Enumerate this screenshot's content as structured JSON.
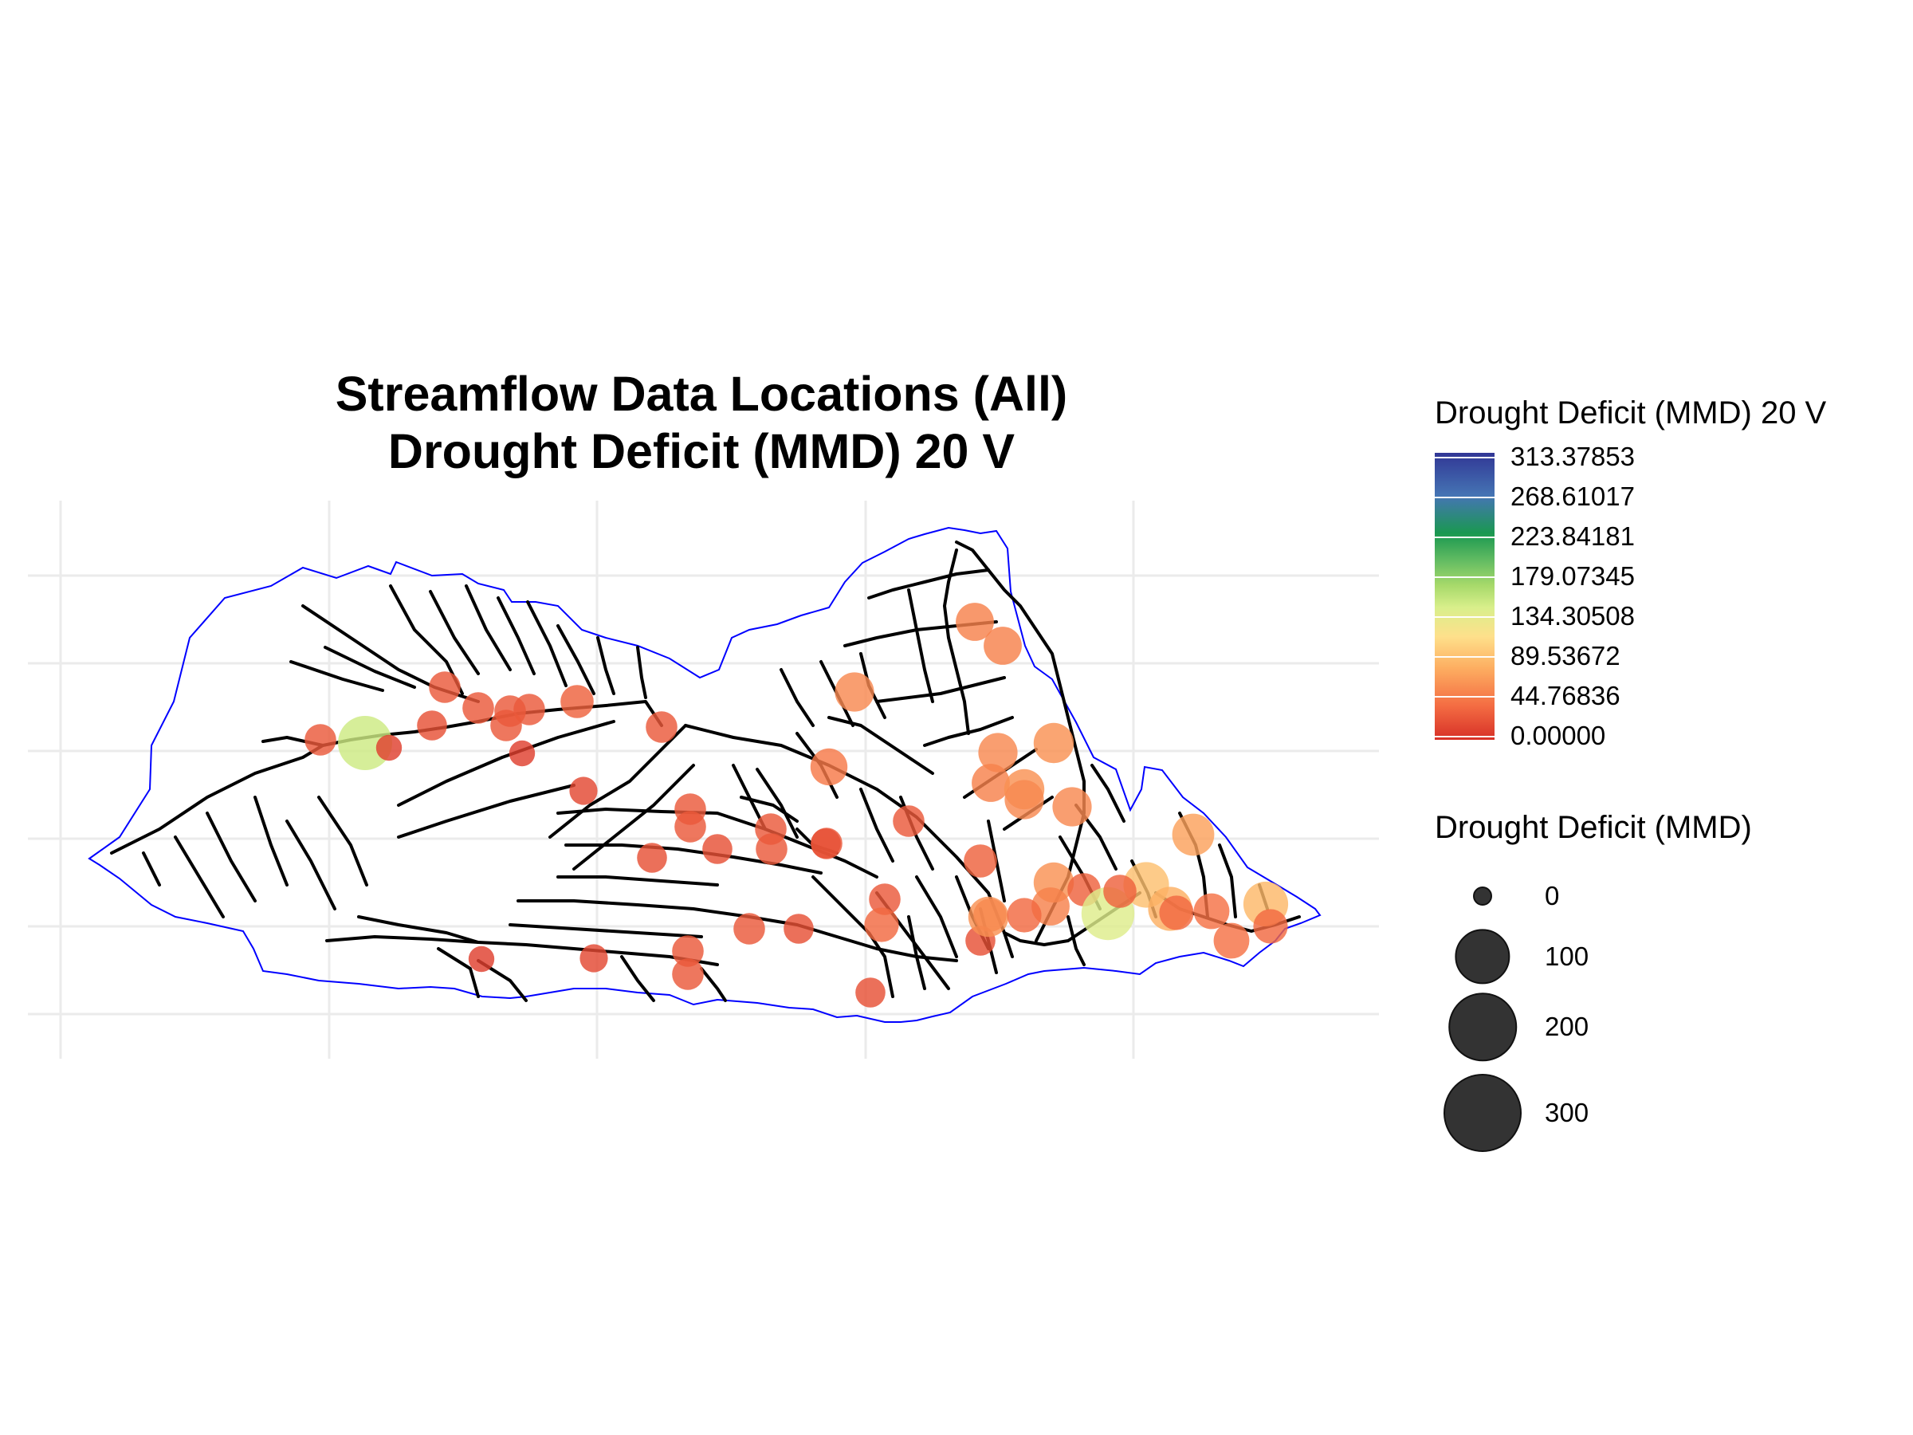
{
  "title": {
    "line1": "Streamflow Data Locations (All)",
    "line2": "Drought Deficit (MMD) 20 V"
  },
  "colors": {
    "basin_outline": "#0000ff",
    "streams": "#000000",
    "grid": "#ebebeb",
    "palette": [
      "#d73027",
      "#f46d43",
      "#fdae61",
      "#fee08b",
      "#d9ef8b",
      "#a6d96a",
      "#66bd63",
      "#1a9850",
      "#4575b4",
      "#313695"
    ]
  },
  "legend_color": {
    "title": "Drought Deficit (MMD) 20 V",
    "max": 313.37853,
    "ticks": [
      "313.37853",
      "268.61017",
      "223.84181",
      "179.07345",
      "134.30508",
      "89.53672",
      "44.76836",
      "0.00000"
    ]
  },
  "legend_size": {
    "title": "Drought Deficit (MMD)",
    "items": [
      {
        "label": "0",
        "value": 0
      },
      {
        "label": "100",
        "value": 100
      },
      {
        "label": "200",
        "value": 200
      },
      {
        "label": "300",
        "value": 300
      }
    ]
  },
  "chart_data": {
    "type": "scatter",
    "map": "streamflow gauge locations on river network within basin boundary",
    "value_name": "Drought Deficit (MMD)",
    "grid": true,
    "axis_labels_shown": false,
    "legend_placement": "right",
    "points": [
      {
        "id": "g01",
        "value": 25
      },
      {
        "id": "g02",
        "value": 150
      },
      {
        "id": "g03",
        "value": 10
      },
      {
        "id": "g04",
        "value": 25
      },
      {
        "id": "g05",
        "value": 20
      },
      {
        "id": "g06",
        "value": 25
      },
      {
        "id": "g07",
        "value": 25
      },
      {
        "id": "g08",
        "value": 25
      },
      {
        "id": "g09",
        "value": 25
      },
      {
        "id": "g10",
        "value": 10
      },
      {
        "id": "g11",
        "value": 30
      },
      {
        "id": "g12",
        "value": 25
      },
      {
        "id": "g13",
        "value": 15
      },
      {
        "id": "g14",
        "value": 50
      },
      {
        "id": "g15",
        "value": 50
      },
      {
        "id": "g16",
        "value": 55
      },
      {
        "id": "g17",
        "value": 55
      },
      {
        "id": "g18",
        "value": 50
      },
      {
        "id": "g19",
        "value": 60
      },
      {
        "id": "g20",
        "value": 60
      },
      {
        "id": "g21",
        "value": 55
      },
      {
        "id": "g22",
        "value": 55
      },
      {
        "id": "g23",
        "value": 45
      },
      {
        "id": "g24",
        "value": 25
      },
      {
        "id": "g25",
        "value": 25
      },
      {
        "id": "g26",
        "value": 25
      },
      {
        "id": "g27",
        "value": 20
      },
      {
        "id": "g28",
        "value": 25
      },
      {
        "id": "g29",
        "value": 25
      },
      {
        "id": "g30",
        "value": 25
      },
      {
        "id": "g31",
        "value": 20
      },
      {
        "id": "g32",
        "value": 30
      },
      {
        "id": "g33",
        "value": 20
      },
      {
        "id": "g34",
        "value": 25
      },
      {
        "id": "g35",
        "value": 35
      },
      {
        "id": "g36",
        "value": 25
      },
      {
        "id": "g37",
        "value": 20
      },
      {
        "id": "g38",
        "value": 25
      },
      {
        "id": "g39",
        "value": 30
      },
      {
        "id": "g40",
        "value": 10
      },
      {
        "id": "g41",
        "value": 15
      },
      {
        "id": "g42",
        "value": 25
      },
      {
        "id": "g43",
        "value": 20
      },
      {
        "id": "g44",
        "value": 20
      },
      {
        "id": "g45",
        "value": 60
      },
      {
        "id": "g46",
        "value": 60
      },
      {
        "id": "g47",
        "value": 50
      },
      {
        "id": "g48",
        "value": 30
      },
      {
        "id": "g49",
        "value": 35
      },
      {
        "id": "g50",
        "value": 140
      },
      {
        "id": "g51",
        "value": 90
      },
      {
        "id": "g52",
        "value": 80
      },
      {
        "id": "g53",
        "value": 35
      },
      {
        "id": "g54",
        "value": 40
      },
      {
        "id": "g55",
        "value": 70
      },
      {
        "id": "g56",
        "value": 40
      },
      {
        "id": "g57",
        "value": 85
      },
      {
        "id": "g58",
        "value": 35
      },
      {
        "id": "g59",
        "value": 30
      }
    ]
  }
}
